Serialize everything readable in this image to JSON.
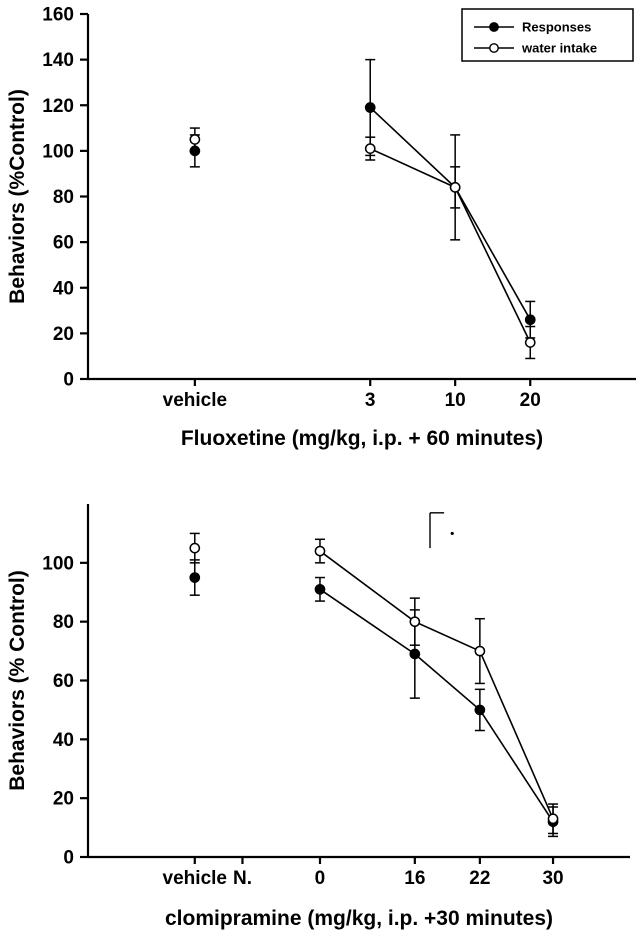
{
  "figure": {
    "background": "#ffffff",
    "line_color": "#000000"
  },
  "chart_data": [
    {
      "type": "line",
      "title": "",
      "xlabel": "Fluoxetine (mg/kg, i.p. + 60 minutes)",
      "ylabel": "Behaviors  (%Control)",
      "ylim": [
        0,
        160
      ],
      "yticks": [
        0,
        20,
        40,
        60,
        80,
        100,
        120,
        140,
        160
      ],
      "grid": false,
      "legend": {
        "position": "top-right",
        "entries": [
          "Responses",
          "water intake"
        ]
      },
      "xticks": [
        {
          "label": "vehicle",
          "pos": 0.195
        },
        {
          "label": "3",
          "pos": 0.515
        },
        {
          "label": "10",
          "pos": 0.67
        },
        {
          "label": "20",
          "pos": 0.807
        }
      ],
      "series": [
        {
          "name": "Responses",
          "marker": "filled-circle",
          "points": [
            {
              "x": 0.195,
              "y": 100,
              "err": 7,
              "connected": false
            },
            {
              "x": 0.515,
              "y": 119,
              "err": 21
            },
            {
              "x": 0.67,
              "y": 84,
              "err": 9
            },
            {
              "x": 0.807,
              "y": 26,
              "err": 8
            }
          ]
        },
        {
          "name": "water intake",
          "marker": "open-circle",
          "points": [
            {
              "x": 0.195,
              "y": 105,
              "err": 5,
              "connected": false
            },
            {
              "x": 0.515,
              "y": 101,
              "err": 5
            },
            {
              "x": 0.67,
              "y": 84,
              "err": 23
            },
            {
              "x": 0.807,
              "y": 16,
              "err": 7
            }
          ]
        }
      ]
    },
    {
      "type": "line",
      "title": "",
      "xlabel": "clomipramine (mg/kg, i.p. +30 minutes)",
      "ylabel": "Behaviors (% Control)",
      "ylim": [
        0,
        120
      ],
      "yticks": [
        0,
        20,
        40,
        60,
        80,
        100
      ],
      "grid": false,
      "legend": null,
      "xticks": [
        {
          "label": "vehicle",
          "pos": 0.197
        },
        {
          "label": "N.",
          "pos": 0.285
        },
        {
          "label": "0",
          "pos": 0.428
        },
        {
          "label": "16",
          "pos": 0.603
        },
        {
          "label": "22",
          "pos": 0.723
        },
        {
          "label": "30",
          "pos": 0.858
        }
      ],
      "series": [
        {
          "name": "Responses",
          "marker": "filled-circle",
          "points": [
            {
              "x": 0.197,
              "y": 95,
              "err": 6,
              "connected": false
            },
            {
              "x": 0.428,
              "y": 91,
              "err": 4
            },
            {
              "x": 0.603,
              "y": 69,
              "err": 15
            },
            {
              "x": 0.723,
              "y": 50,
              "err": 7
            },
            {
              "x": 0.858,
              "y": 12,
              "err": 5
            }
          ]
        },
        {
          "name": "water intake",
          "marker": "open-circle",
          "points": [
            {
              "x": 0.197,
              "y": 105,
              "err": 5,
              "connected": false
            },
            {
              "x": 0.428,
              "y": 104,
              "err": 4
            },
            {
              "x": 0.603,
              "y": 80,
              "err": 8
            },
            {
              "x": 0.723,
              "y": 70,
              "err": 11
            },
            {
              "x": 0.858,
              "y": 13,
              "err": 5
            }
          ]
        }
      ],
      "annotation_bracket": {
        "x": 0.631,
        "x2": 0.657,
        "y_top": 117,
        "y_bottom": 105,
        "dot_x": 0.672,
        "dot_y": 110
      }
    }
  ]
}
